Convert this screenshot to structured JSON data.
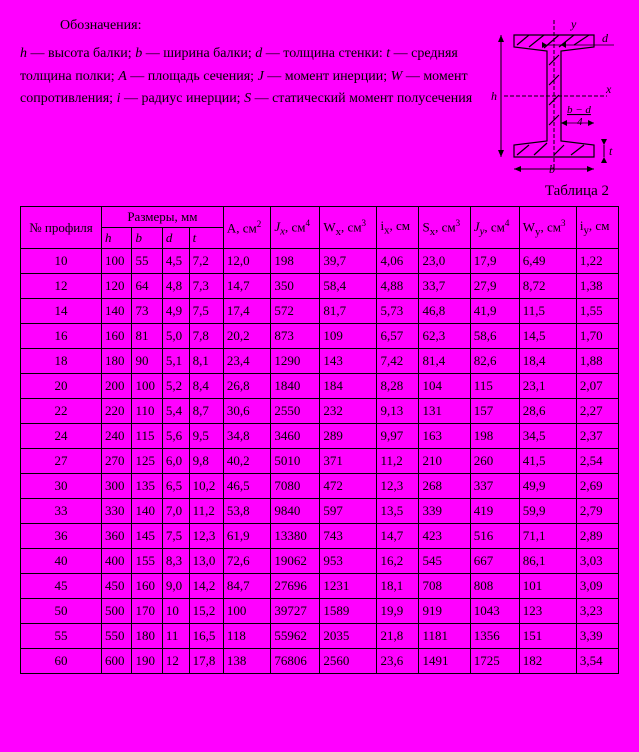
{
  "legend": {
    "title": "Обозначения:",
    "body": "<span class=\"italic\">h</span> — высота балки; <span class=\"italic\">b</span> — ширина балки; <span class=\"italic\">d</span> — толщи­на стенки: <span class=\"italic\">t</span> — средняя толщина полки; <span class=\"italic\">A</span> — пло­щадь сечения; <span class=\"italic\">J</span> — момент инерции; <span class=\"italic\">W</span> — момент сопротивления; <span class=\"italic\">i</span> — радиус инерции; <span class=\"italic\">S</span> — статичес­кий момент полусечения"
  },
  "diagram_labels": {
    "y": "y",
    "d": "d",
    "h": "h",
    "x": "x",
    "frac": "b − d",
    "four": "4",
    "t": "t",
    "b": "b"
  },
  "table": {
    "caption": "Таблица 2",
    "header": {
      "profile": "№ про­филя",
      "dims": "Размеры, мм",
      "h": "h",
      "b": "b",
      "d": "d",
      "t": "t",
      "A": "A, см<sup>2</sup>",
      "Jx": "<span class=\"italic\">J<sub>x</sub></span>, см<sup>4</sup>",
      "Wx": "W<sub>x</sub>, см<sup>3</sup>",
      "ix": "i<sub>x</sub>, см",
      "Sx": "S<sub>x</sub>, см<sup>3</sup>",
      "Jy": "<span class=\"italic\">J<sub>y</sub></span>, см<sup>4</sup>",
      "Wy": "W<sub>y</sub>, см<sup>3</sup>",
      "iy": "i<sub>y</sub>, см"
    },
    "rows": [
      [
        "10",
        "100",
        "55",
        "4,5",
        "7,2",
        "12,0",
        "198",
        "39,7",
        "4,06",
        "23,0",
        "17,9",
        "6,49",
        "1,22"
      ],
      [
        "12",
        "120",
        "64",
        "4,8",
        "7,3",
        "14,7",
        "350",
        "58,4",
        "4,88",
        "33,7",
        "27,9",
        "8,72",
        "1,38"
      ],
      [
        "14",
        "140",
        "73",
        "4,9",
        "7,5",
        "17,4",
        "572",
        "81,7",
        "5,73",
        "46,8",
        "41,9",
        "11,5",
        "1,55"
      ],
      [
        "16",
        "160",
        "81",
        "5,0",
        "7,8",
        "20,2",
        "873",
        "109",
        "6,57",
        "62,3",
        "58,6",
        "14,5",
        "1,70"
      ],
      [
        "18",
        "180",
        "90",
        "5,1",
        "8,1",
        "23,4",
        "1290",
        "143",
        "7,42",
        "81,4",
        "82,6",
        "18,4",
        "1,88"
      ],
      [
        "20",
        "200",
        "100",
        "5,2",
        "8,4",
        "26,8",
        "1840",
        "184",
        "8,28",
        "104",
        "115",
        "23,1",
        "2,07"
      ],
      [
        "22",
        "220",
        "110",
        "5,4",
        "8,7",
        "30,6",
        "2550",
        "232",
        "9,13",
        "131",
        "157",
        "28,6",
        "2,27"
      ],
      [
        "24",
        "240",
        "115",
        "5,6",
        "9,5",
        "34,8",
        "3460",
        "289",
        "9,97",
        "163",
        "198",
        "34,5",
        "2,37"
      ],
      [
        "27",
        "270",
        "125",
        "6,0",
        "9,8",
        "40,2",
        "5010",
        "371",
        "11,2",
        "210",
        "260",
        "41,5",
        "2,54"
      ],
      [
        "30",
        "300",
        "135",
        "6,5",
        "10,2",
        "46,5",
        "7080",
        "472",
        "12,3",
        "268",
        "337",
        "49,9",
        "2,69"
      ],
      [
        "33",
        "330",
        "140",
        "7,0",
        "11,2",
        "53,8",
        "9840",
        "597",
        "13,5",
        "339",
        "419",
        "59,9",
        "2,79"
      ],
      [
        "36",
        "360",
        "145",
        "7,5",
        "12,3",
        "61,9",
        "13380",
        "743",
        "14,7",
        "423",
        "516",
        "71,1",
        "2,89"
      ],
      [
        "40",
        "400",
        "155",
        "8,3",
        "13,0",
        "72,6",
        "19062",
        "953",
        "16,2",
        "545",
        "667",
        "86,1",
        "3,03"
      ],
      [
        "45",
        "450",
        "160",
        "9,0",
        "14,2",
        "84,7",
        "27696",
        "1231",
        "18,1",
        "708",
        "808",
        "101",
        "3,09"
      ],
      [
        "50",
        "500",
        "170",
        "10",
        "15,2",
        "100",
        "39727",
        "1589",
        "19,9",
        "919",
        "1043",
        "123",
        "3,23"
      ],
      [
        "55",
        "550",
        "180",
        "11",
        "16,5",
        "118",
        "55962",
        "2035",
        "21,8",
        "1181",
        "1356",
        "151",
        "3,39"
      ],
      [
        "60",
        "600",
        "190",
        "12",
        "17,8",
        "138",
        "76806",
        "2560",
        "23,6",
        "1491",
        "1725",
        "182",
        "3,54"
      ]
    ]
  }
}
